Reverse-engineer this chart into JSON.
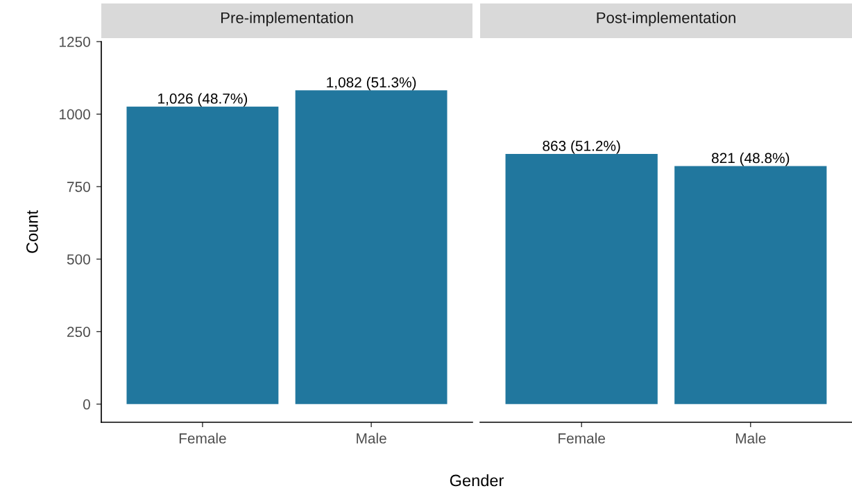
{
  "chart_data": [
    {
      "type": "bar",
      "title": "Pre-implementation",
      "xlabel": "Gender",
      "ylabel": "Count",
      "categories": [
        "Female",
        "Male"
      ],
      "values": [
        1026,
        1082
      ],
      "value_labels": [
        "1,026 (48.7%)",
        "1,082 (51.3%)"
      ],
      "color": "#21779e",
      "ylim": [
        -62.5,
        1250
      ],
      "yticks": [
        0,
        250,
        500,
        750,
        1000,
        1250
      ],
      "grid": false,
      "legend": false
    },
    {
      "type": "bar",
      "title": "Post-implementation",
      "categories": [
        "Female",
        "Male"
      ],
      "values": [
        863,
        821
      ],
      "value_labels": [
        "863 (51.2%)",
        "821 (48.8%)"
      ],
      "color": "#21779e",
      "ylim": [
        -62.5,
        1250
      ],
      "yticks": [
        0,
        250,
        500,
        750,
        1000,
        1250
      ],
      "tick_labels": "x",
      "grid": false,
      "legend": false
    }
  ]
}
